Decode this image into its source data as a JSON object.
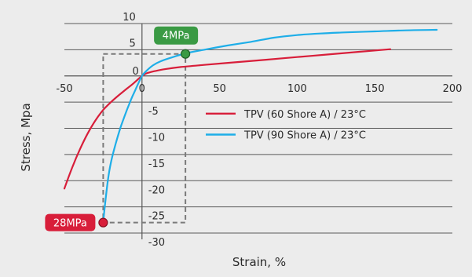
{
  "colors": {
    "background": "#ececec",
    "grid": "#5a5a5a",
    "axis": "#555555",
    "series_red": "#d81e3a",
    "series_blue": "#1eaee8",
    "callout_green": "#3a9a44",
    "callout_red": "#d81e3a",
    "box_dash": "#7a7a7a"
  },
  "chart_data": {
    "type": "line",
    "title": "",
    "xlabel": "Strain, %",
    "ylabel": "Stress, Mpa",
    "xlim": [
      -50,
      200
    ],
    "ylim": [
      -30,
      10
    ],
    "x_ticks": [
      -50,
      0,
      50,
      100,
      150,
      200
    ],
    "x_tick_labels": [
      "-50",
      "0",
      "50",
      "100",
      "150",
      "200"
    ],
    "y_ticks": [
      10,
      5,
      0,
      -5,
      -10,
      -15,
      -20,
      -25,
      -30
    ],
    "y_tick_labels": [
      "10",
      "5",
      "0",
      "-5",
      "-10",
      "-15",
      "-20",
      "-25",
      "-30"
    ],
    "grid": "horizontal",
    "legend_position": "center-right",
    "series": [
      {
        "name": "TPV (60 Shore A) / 23°C",
        "color": "#d81e3a",
        "x": [
          -50,
          -45,
          -40,
          -35,
          -30,
          -25,
          -20,
          -15,
          -10,
          -5,
          -2,
          0,
          3,
          8,
          15,
          25,
          40,
          60,
          80,
          100,
          120,
          140,
          160
        ],
        "y": [
          -21.5,
          -17.5,
          -14.0,
          -11.0,
          -8.5,
          -6.5,
          -5.0,
          -3.7,
          -2.5,
          -1.3,
          -0.5,
          0.0,
          0.5,
          0.9,
          1.3,
          1.7,
          2.1,
          2.6,
          3.1,
          3.6,
          4.1,
          4.6,
          5.1
        ]
      },
      {
        "name": "TPV (90 Shore A) / 23°C",
        "color": "#1eaee8",
        "x": [
          -25,
          -24,
          -22,
          -20,
          -17,
          -14,
          -11,
          -8,
          -6,
          -4,
          -2,
          0,
          3,
          7,
          12,
          20,
          28,
          40,
          55,
          70,
          85,
          100,
          115,
          130,
          150,
          170,
          190
        ],
        "y": [
          -28.0,
          -25.0,
          -20.0,
          -16.5,
          -13.0,
          -10.0,
          -7.5,
          -5.2,
          -3.8,
          -2.5,
          -1.2,
          0.0,
          1.0,
          2.0,
          2.8,
          3.6,
          4.3,
          5.0,
          5.8,
          6.5,
          7.3,
          7.8,
          8.1,
          8.3,
          8.5,
          8.7,
          8.8
        ]
      }
    ],
    "annotations": [
      {
        "label": "4MPa",
        "x": 28,
        "y": 4.2,
        "color": "#3a9a44"
      },
      {
        "label": "28MPa",
        "x": -25,
        "y": -28.0,
        "color": "#d81e3a"
      }
    ],
    "reference_box": {
      "x": [
        -25,
        28
      ],
      "y": [
        -28.0,
        4.2
      ]
    }
  }
}
